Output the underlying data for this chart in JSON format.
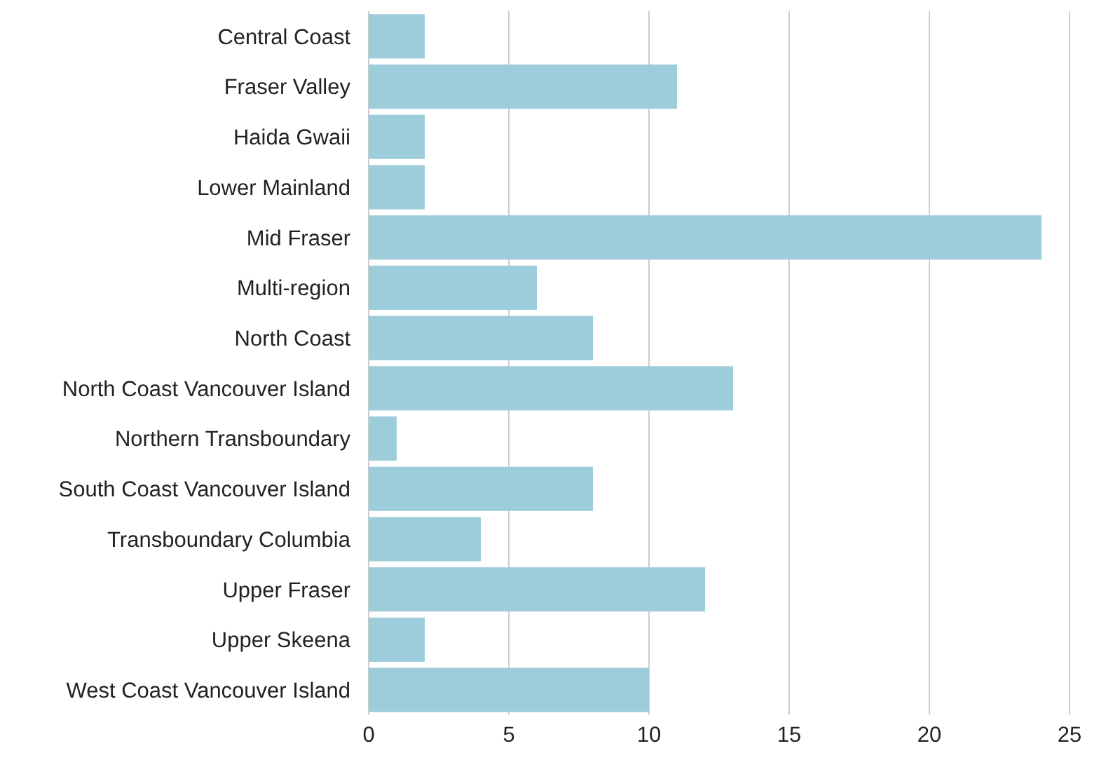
{
  "chart_data": {
    "type": "bar",
    "orientation": "horizontal",
    "categories": [
      "Central Coast",
      "Fraser Valley",
      "Haida Gwaii",
      "Lower Mainland",
      "Mid Fraser",
      "Multi-region",
      "North Coast",
      "North Coast Vancouver Island",
      "Northern Transboundary",
      "South Coast Vancouver Island",
      "Transboundary Columbia",
      "Upper Fraser",
      "Upper Skeena",
      "West Coast Vancouver Island"
    ],
    "values": [
      2,
      11,
      2,
      2,
      24,
      6,
      8,
      13,
      1,
      8,
      4,
      12,
      2,
      10
    ],
    "color": "#9dcddb",
    "xlim": [
      0,
      25
    ],
    "xticks": [
      0,
      5,
      10,
      15,
      20,
      25
    ],
    "grid": "x"
  }
}
